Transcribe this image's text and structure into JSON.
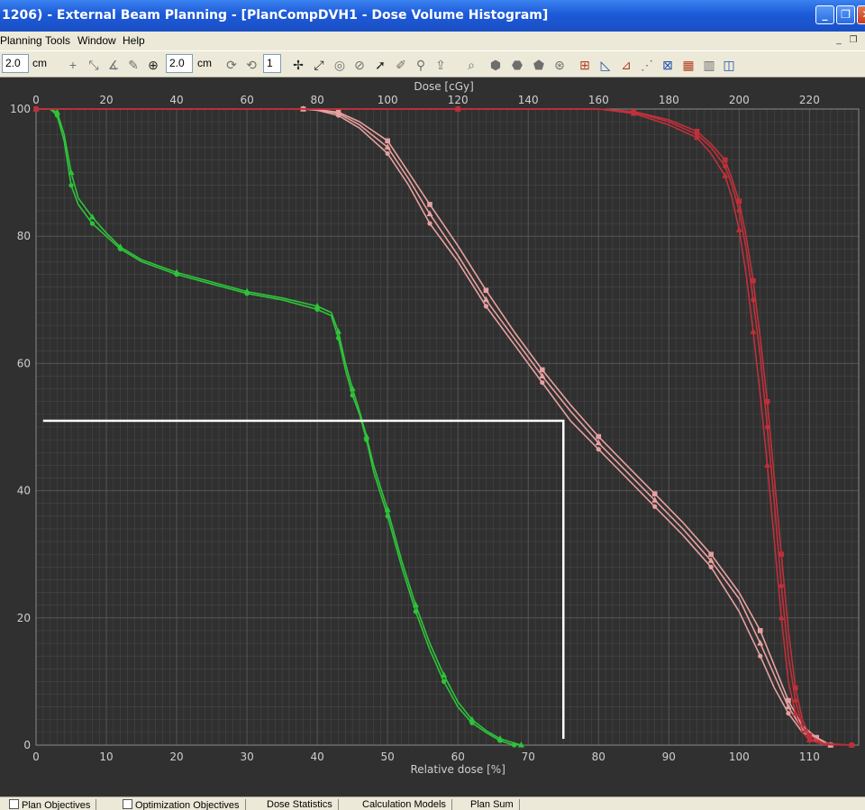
{
  "window": {
    "title": "1206) - External Beam Planning - [PlanCompDVH1 - Dose Volume Histogram]",
    "controls": [
      "_",
      "❐",
      "✕"
    ]
  },
  "menu": {
    "items": [
      "Planning",
      "Tools",
      "Window",
      "Help"
    ]
  },
  "toolbar": {
    "field1_value": "2.0",
    "field1_unit": "cm",
    "field2_value": "2.0",
    "field2_unit": "cm",
    "field3_value": "1"
  },
  "statusbar": {
    "tabs": [
      "Plan Objectives",
      "Optimization Objectives",
      "Dose Statistics",
      "Calculation Models",
      "Plan Sum"
    ]
  },
  "chart_data": {
    "type": "line",
    "xlabel": "Relative dose [%]",
    "x2label": "Dose [cGy]",
    "xlim": [
      0,
      117
    ],
    "ylim": [
      0,
      100
    ],
    "x_ticks": [
      0,
      10,
      20,
      30,
      40,
      50,
      60,
      70,
      80,
      90,
      100,
      110
    ],
    "x2_ticks": [
      0,
      20,
      40,
      60,
      80,
      100,
      120,
      140,
      160,
      180,
      200,
      220
    ],
    "x2_per_x": 2.0,
    "y_ticks": [
      0,
      20,
      40,
      60,
      80,
      100
    ],
    "grid": true,
    "colors": {
      "green": "#2ec43a",
      "pink": "#e8a0a0",
      "red": "#c0303a",
      "grid": "#5a5a5a",
      "overlay": "#ffffff"
    },
    "series": [
      {
        "color": "green",
        "marker": "circle",
        "x": [
          0,
          2,
          3,
          4,
          5,
          6,
          8,
          10,
          12,
          15,
          20,
          25,
          30,
          35,
          40,
          42,
          43,
          44,
          45,
          46,
          47,
          48,
          50,
          52,
          54,
          56,
          58,
          60,
          62,
          64,
          66,
          68
        ],
        "y": [
          100,
          100,
          99,
          95,
          88,
          85,
          82,
          80,
          78,
          76,
          74,
          72.5,
          71,
          70,
          68.5,
          67.5,
          64,
          59,
          55,
          52,
          48,
          43,
          36,
          28,
          21,
          15,
          10,
          6,
          3.5,
          2,
          0.7,
          0
        ]
      },
      {
        "color": "green",
        "marker": "triangle",
        "x": [
          0,
          2,
          3,
          4,
          5,
          6,
          8,
          10,
          12,
          15,
          20,
          25,
          30,
          35,
          40,
          42,
          43,
          44,
          45,
          46,
          47,
          48,
          50,
          52,
          54,
          56,
          58,
          60,
          62,
          64,
          66,
          69
        ],
        "y": [
          100,
          100,
          99.5,
          96,
          90,
          86,
          83,
          80.5,
          78.3,
          76.3,
          74.3,
          72.8,
          71.3,
          70.3,
          69,
          68,
          65,
          60,
          56,
          52.5,
          48.5,
          44,
          37,
          29,
          22,
          16,
          11,
          6.8,
          4,
          2.3,
          1,
          0
        ]
      },
      {
        "color": "pink",
        "marker": "circle",
        "x": [
          38,
          40,
          43,
          46,
          50,
          53,
          56,
          60,
          64,
          68,
          72,
          76,
          80,
          84,
          88,
          92,
          96,
          100,
          103,
          105,
          107,
          109,
          111,
          113
        ],
        "y": [
          100,
          99.8,
          99,
          97,
          93,
          88,
          82,
          76,
          69,
          63,
          57,
          51,
          46.5,
          42,
          37.5,
          33,
          28,
          21,
          14,
          9,
          5,
          2,
          1,
          0
        ]
      },
      {
        "color": "pink",
        "marker": "triangle",
        "x": [
          38,
          40,
          43,
          46,
          50,
          53,
          56,
          60,
          64,
          68,
          72,
          76,
          80,
          84,
          88,
          92,
          96,
          100,
          103,
          105,
          107,
          109,
          111,
          113
        ],
        "y": [
          100,
          99.9,
          99.3,
          97.5,
          94,
          89,
          83.5,
          77,
          70,
          64,
          58,
          52.5,
          47.5,
          43,
          38.5,
          34,
          29,
          23,
          16,
          11,
          6,
          2.5,
          1,
          0
        ]
      },
      {
        "color": "pink",
        "marker": "square",
        "x": [
          38,
          40,
          43,
          46,
          50,
          53,
          56,
          60,
          64,
          68,
          72,
          76,
          80,
          84,
          88,
          92,
          96,
          100,
          103,
          105,
          107,
          109,
          111,
          113
        ],
        "y": [
          100,
          99.9,
          99.5,
          98,
          95,
          90,
          85,
          78.5,
          71.5,
          65,
          59,
          53.5,
          48.5,
          44,
          39.5,
          35,
          30,
          24,
          18,
          12.5,
          7,
          3,
          1.2,
          0
        ]
      },
      {
        "color": "red",
        "marker": "circle",
        "x": [
          0,
          40,
          60,
          80,
          85,
          90,
          94,
          96,
          98,
          99,
          100,
          101,
          102,
          103,
          104,
          105,
          106,
          107,
          108,
          109,
          110,
          112,
          116
        ],
        "y": [
          100,
          100,
          100,
          100,
          99.5,
          98,
          96,
          94,
          91,
          88,
          84,
          78,
          70,
          61,
          50,
          38,
          25,
          14,
          7,
          3,
          1,
          0.2,
          0
        ]
      },
      {
        "color": "red",
        "marker": "triangle",
        "x": [
          0,
          40,
          60,
          80,
          85,
          90,
          94,
          96,
          98,
          99,
          100,
          101,
          102,
          103,
          104,
          105,
          106,
          107,
          108,
          109,
          110,
          112,
          116
        ],
        "y": [
          100,
          100,
          100,
          100,
          99.3,
          97.5,
          95.5,
          93,
          89.5,
          86,
          81,
          74,
          65,
          55,
          44,
          32,
          20,
          10,
          5,
          2,
          0.8,
          0.1,
          0
        ]
      },
      {
        "color": "red",
        "marker": "square",
        "x": [
          0,
          40,
          60,
          80,
          85,
          90,
          94,
          96,
          98,
          99,
          100,
          101,
          102,
          103,
          104,
          105,
          106,
          107,
          108,
          109,
          110,
          112,
          116
        ],
        "y": [
          100,
          100,
          100,
          100,
          99.6,
          98.3,
          96.5,
          94.5,
          92,
          89,
          85.5,
          80,
          73,
          64,
          54,
          42,
          30,
          18,
          9,
          4,
          1.5,
          0.3,
          0
        ]
      }
    ],
    "annotations": [
      {
        "type": "polyline",
        "x": [
          1,
          75,
          75
        ],
        "y": [
          51,
          51,
          1
        ]
      }
    ]
  }
}
